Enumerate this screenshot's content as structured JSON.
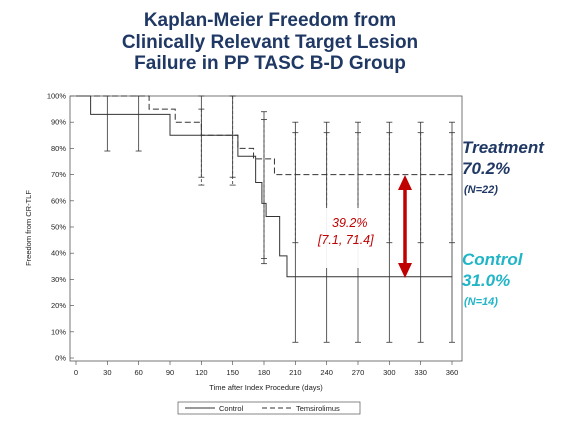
{
  "title_lines": [
    "Kaplan-Meier Freedom from",
    "Clinically Relevant Target Lesion",
    "Failure in PP TASC B-D Group"
  ],
  "annotations": {
    "treatment_name": "Treatment",
    "treatment_pct": "70.2%",
    "treatment_n": "(N=22)",
    "control_name": "Control",
    "control_pct": "31.0%",
    "control_n": "(N=14)",
    "difference": "39.2%",
    "difference_ci": "[7.1, 71.4]"
  },
  "colors": {
    "title": "#1f3864",
    "treatment": "#1f3864",
    "control": "#21b5c7",
    "arrow": "#c00000"
  },
  "chart_data": {
    "type": "line",
    "xlabel": "Time after Index Procedure (days)",
    "ylabel": "Freedom from CR-TLF",
    "xlim": [
      0,
      360
    ],
    "ylim": [
      0,
      100
    ],
    "x_ticks": [
      0,
      30,
      60,
      90,
      120,
      150,
      180,
      210,
      240,
      270,
      300,
      330,
      360
    ],
    "y_ticks": [
      0,
      10,
      20,
      30,
      40,
      50,
      60,
      70,
      80,
      90,
      100
    ],
    "y_tick_labels": [
      "0%",
      "10%",
      "20%",
      "30%",
      "40%",
      "50%",
      "60%",
      "70%",
      "80%",
      "90%",
      "100%"
    ],
    "legend_position": "bottom",
    "series": [
      {
        "name": "Control",
        "style": "solid",
        "steps": [
          [
            0,
            100
          ],
          [
            14,
            93
          ],
          [
            90,
            85
          ],
          [
            155,
            77
          ],
          [
            172,
            67
          ],
          [
            178,
            59
          ],
          [
            182,
            54
          ],
          [
            195,
            39
          ],
          [
            202,
            31
          ],
          [
            360,
            31
          ]
        ],
        "error_bars": [
          {
            "x": 30,
            "y": 93,
            "lo": 79,
            "hi": 100
          },
          {
            "x": 60,
            "y": 93,
            "lo": 79,
            "hi": 100
          },
          {
            "x": 120,
            "y": 85,
            "lo": 69,
            "hi": 100
          },
          {
            "x": 150,
            "y": 85,
            "lo": 69,
            "hi": 100
          },
          {
            "x": 180,
            "y": 54,
            "lo": 36,
            "hi": 94
          },
          {
            "x": 210,
            "y": 31,
            "lo": 6,
            "hi": 90
          },
          {
            "x": 240,
            "y": 31,
            "lo": 6,
            "hi": 90
          },
          {
            "x": 270,
            "y": 31,
            "lo": 6,
            "hi": 90
          },
          {
            "x": 300,
            "y": 31,
            "lo": 6,
            "hi": 90
          },
          {
            "x": 330,
            "y": 31,
            "lo": 6,
            "hi": 90
          },
          {
            "x": 360,
            "y": 31,
            "lo": 6,
            "hi": 90
          }
        ]
      },
      {
        "name": "Temsirolimus",
        "style": "dashed",
        "steps": [
          [
            0,
            100
          ],
          [
            70,
            95
          ],
          [
            95,
            90
          ],
          [
            120,
            85
          ],
          [
            155,
            80
          ],
          [
            170,
            76
          ],
          [
            190,
            70
          ],
          [
            360,
            70
          ]
        ],
        "error_bars": [
          {
            "x": 120,
            "y": 85,
            "lo": 66,
            "hi": 95
          },
          {
            "x": 150,
            "y": 80,
            "lo": 66,
            "hi": 100
          },
          {
            "x": 180,
            "y": 76,
            "lo": 38,
            "hi": 91
          },
          {
            "x": 210,
            "y": 70,
            "lo": 44,
            "hi": 86
          },
          {
            "x": 240,
            "y": 70,
            "lo": 44,
            "hi": 86
          },
          {
            "x": 270,
            "y": 70,
            "lo": 44,
            "hi": 86
          },
          {
            "x": 300,
            "y": 70,
            "lo": 44,
            "hi": 86
          },
          {
            "x": 330,
            "y": 70,
            "lo": 44,
            "hi": 86
          },
          {
            "x": 360,
            "y": 70,
            "lo": 44,
            "hi": 86
          }
        ]
      }
    ]
  }
}
